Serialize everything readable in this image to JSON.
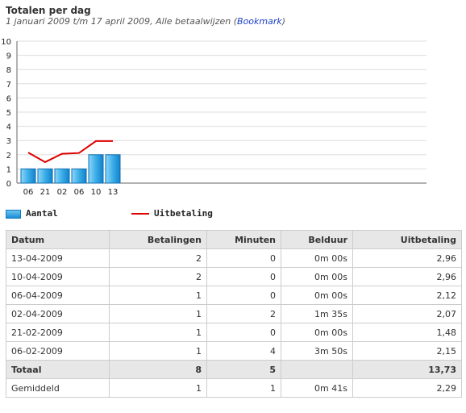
{
  "header": {
    "title": "Totalen per dag",
    "subtitle": "1 januari 2009 t/m 17 april 2009, Alle betaalwijzen",
    "bookmark_open": "(",
    "bookmark_label": "Bookmark",
    "bookmark_close": ")"
  },
  "chart_data": {
    "type": "bar",
    "categories": [
      "06",
      "21",
      "02",
      "06",
      "10",
      "13"
    ],
    "series": [
      {
        "name": "Aantal",
        "kind": "bar",
        "values": [
          1,
          1,
          1,
          1,
          2,
          2
        ],
        "color": "#2a9ee0"
      },
      {
        "name": "Uitbetaling",
        "kind": "line",
        "values": [
          2.15,
          1.48,
          2.07,
          2.12,
          2.96,
          2.96
        ],
        "color": "#dd0000"
      }
    ],
    "yticks": [
      "0",
      "1",
      "2",
      "3",
      "4",
      "5",
      "6",
      "7",
      "8",
      "9",
      "10"
    ],
    "ylim": [
      0,
      10
    ],
    "grid": true
  },
  "legend": {
    "bar_label": "Aantal",
    "line_label": "Uitbetaling"
  },
  "table": {
    "headers": [
      "Datum",
      "Betalingen",
      "Minuten",
      "Belduur",
      "Uitbetaling"
    ],
    "rows": [
      [
        "13-04-2009",
        "2",
        "0",
        "0m 00s",
        "2,96"
      ],
      [
        "10-04-2009",
        "2",
        "0",
        "0m 00s",
        "2,96"
      ],
      [
        "06-04-2009",
        "1",
        "0",
        "0m 00s",
        "2,12"
      ],
      [
        "02-04-2009",
        "1",
        "2",
        "1m 35s",
        "2,07"
      ],
      [
        "21-02-2009",
        "1",
        "0",
        "0m 00s",
        "1,48"
      ],
      [
        "06-02-2009",
        "1",
        "4",
        "3m 50s",
        "2,15"
      ]
    ],
    "total": [
      "Totaal",
      "8",
      "5",
      "",
      "13,73"
    ],
    "average": [
      "Gemiddeld",
      "1",
      "1",
      "0m 41s",
      "2,29"
    ]
  }
}
